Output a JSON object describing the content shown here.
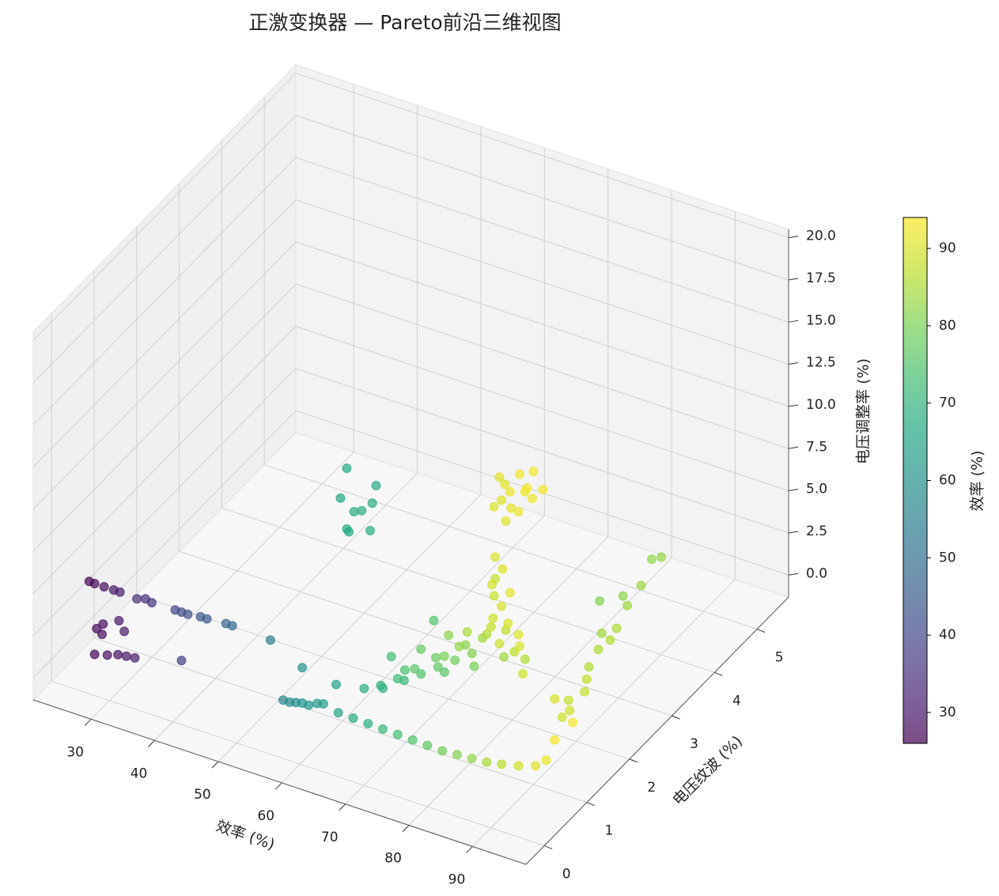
{
  "chart_data": {
    "type": "scatter3d",
    "title": "正激变换器 — Pareto前沿三维视图",
    "x_label": "效率 (%)",
    "y_label": "电压纹波 (%)",
    "z_label": "电压调整率 (%)",
    "colorbar_label": "效率 (%)",
    "colormap": "viridis",
    "alpha": 0.7,
    "grid": true,
    "xlim": [
      20.9,
      98.4
    ],
    "ylim": [
      -0.43,
      5.74
    ],
    "zlim": [
      -1.3,
      20.5
    ],
    "xticks": [
      30,
      40,
      50,
      60,
      70,
      80,
      90
    ],
    "yticks": [
      0,
      1,
      2,
      3,
      4,
      5
    ],
    "zticks": [
      {
        "value": 0,
        "label": "0.0"
      },
      2.5,
      {
        "value": 5,
        "label": "5.0"
      },
      7.5,
      {
        "value": 10,
        "label": "10.0"
      },
      12.5,
      {
        "value": 15,
        "label": "15.0"
      },
      17.5,
      {
        "value": 20,
        "label": "20.0"
      }
    ],
    "clim": [
      26,
      94
    ],
    "cticks": [
      30,
      40,
      50,
      60,
      70,
      80,
      90
    ],
    "x": [
      26.5,
      27,
      28.5,
      30,
      31,
      34,
      35,
      36,
      40,
      41,
      42,
      44,
      45,
      48,
      49,
      55,
      27,
      27.5,
      28,
      29.5,
      30,
      27,
      28,
      29,
      30,
      31,
      38,
      67,
      67,
      68,
      68,
      66,
      68,
      67,
      68,
      67,
      91,
      91.5,
      92,
      91,
      92.5,
      93,
      92,
      91.5,
      92.5,
      93,
      90.5,
      92,
      93.5,
      91,
      90,
      90.5,
      89.5,
      91,
      90,
      89,
      88.5,
      90,
      91,
      89,
      90.5,
      88,
      68,
      70,
      72,
      74,
      75,
      76,
      77,
      78,
      79,
      80,
      81,
      82,
      83,
      84,
      85,
      86,
      87,
      88,
      73,
      71,
      69,
      76,
      80,
      84,
      86,
      78,
      82,
      75,
      87,
      89,
      57,
      58,
      59,
      60,
      61,
      62,
      63,
      65,
      67,
      69,
      71,
      73,
      75,
      77,
      79,
      81,
      83,
      85,
      87,
      89,
      91,
      92,
      93,
      93.5,
      83,
      82.5,
      83.5,
      84,
      84,
      85,
      85.5,
      86,
      86,
      87,
      87.5,
      88,
      88.5,
      89,
      82,
      81,
      60,
      65,
      90
    ],
    "y": [
      0.05,
      0.1,
      0.1,
      0.1,
      0.1,
      0.05,
      0.1,
      0.1,
      0.05,
      0.05,
      0.05,
      0.05,
      0.05,
      0.05,
      0.05,
      0.05,
      0.15,
      0.2,
      0.15,
      0.3,
      0.35,
      0.1,
      0.25,
      0.35,
      0.4,
      0.45,
      0.5,
      0.05,
      0.74,
      0.25,
      0.07,
      0.05,
      0.45,
      0.05,
      0.5,
      0.1,
      0.05,
      0.1,
      0.15,
      0.1,
      0.3,
      0.4,
      0.5,
      0.25,
      0.6,
      0.55,
      0.0,
      0.35,
      0.7,
      0.2,
      0.1,
      0.2,
      0.1,
      0.3,
      0.25,
      0.2,
      0.3,
      0.4,
      0.5,
      0.35,
      0.6,
      0.4,
      0.31,
      0.4,
      0.5,
      0.37,
      0.6,
      0.3,
      0.7,
      0.5,
      0.8,
      0.4,
      0.9,
      0.6,
      0.3,
      0.7,
      0.19,
      0.5,
      0.8,
      0.3,
      0.2,
      0.8,
      0.6,
      1.0,
      1.1,
      1.2,
      1.4,
      0.15,
      0.2,
      0.9,
      1.0,
      0.9,
      0.05,
      0.05,
      0.05,
      0.05,
      0.05,
      0.1,
      0.1,
      0.15,
      0.2,
      0.25,
      0.3,
      0.35,
      0.4,
      0.45,
      0.5,
      0.55,
      0.6,
      0.65,
      0.7,
      0.8,
      0.9,
      1.0,
      1.05,
      1.4,
      5.05,
      4.9,
      4.5,
      4.1,
      3.5,
      3.7,
      3.2,
      2.9,
      3.4,
      2.7,
      2.2,
      2.5,
      1.9,
      2.0,
      4.3,
      3.9,
      0.05,
      0.1,
      1.5
    ],
    "z": [
      5.2,
      5.0,
      5.0,
      5.0,
      5.0,
      5.1,
      5.1,
      5.0,
      5.2,
      5.2,
      5.2,
      5.3,
      5.3,
      5.4,
      5.4,
      5.3,
      2.2,
      1.8,
      2.6,
      2.6,
      1.9,
      0.8,
      0.5,
      0.4,
      0.3,
      0.2,
      0.8,
      17.0,
      14.2,
      14.1,
      14.5,
      15.1,
      12.4,
      13.4,
      13.9,
      13.1,
      19.5,
      19.0,
      18.5,
      18.0,
      19.2,
      18.2,
      17.6,
      17.2,
      17.0,
      18.8,
      17.8,
      16.8,
      17.4,
      16.5,
      14.5,
      13.6,
      12.8,
      12.0,
      11.2,
      10.5,
      11.5,
      9.8,
      9.0,
      8.6,
      8.0,
      12.2,
      3.4,
      3.6,
      4.0,
      5.1,
      4.4,
      5.6,
      4.8,
      6.0,
      5.2,
      6.6,
      5.6,
      7.0,
      7.8,
      7.4,
      9.2,
      8.4,
      8.0,
      9.6,
      6.2,
      3.0,
      2.8,
      3.6,
      4.2,
      5.0,
      4.6,
      7.4,
      8.6,
      6.8,
      6.2,
      5.4,
      2.0,
      2.0,
      2.1,
      2.2,
      2.2,
      2.3,
      2.4,
      2.0,
      1.8,
      1.6,
      1.4,
      1.2,
      1.0,
      0.8,
      0.6,
      0.5,
      0.4,
      0.3,
      0.3,
      0.2,
      0.2,
      0.4,
      1.6,
      1.8,
      0.9,
      1.1,
      0.7,
      0.6,
      0.5,
      0.4,
      0.5,
      0.3,
      0.6,
      0.2,
      0.3,
      0.1,
      0.2,
      0.4,
      0.4,
      1.0,
      4.3,
      3.8,
      2.5
    ]
  }
}
